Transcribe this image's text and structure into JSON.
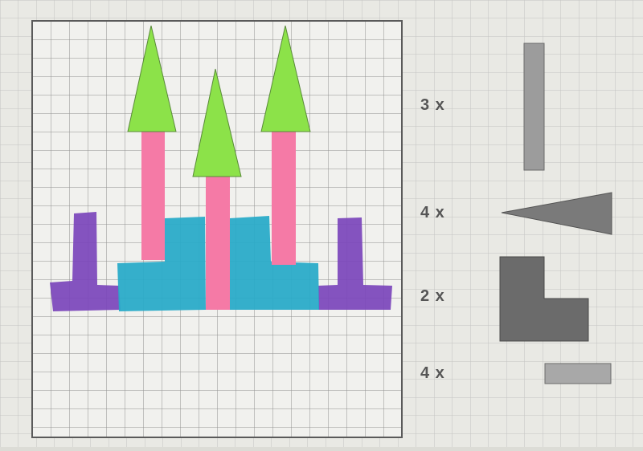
{
  "palette": {
    "paper": "#ecece8",
    "grid_line": "#9d9d9d",
    "frame": "#555555",
    "green": "#8de04a",
    "pink": "#f47aa5",
    "blue": "#2aabc9",
    "purple": "#7b43b8",
    "piece_light": "#9b9b9b",
    "piece_dark": "#6a6a6a"
  },
  "piece_counts": [
    {
      "piece": "long-bar",
      "label": "3 x"
    },
    {
      "piece": "triangle",
      "label": "4 x"
    },
    {
      "piece": "l-shape",
      "label": "2 x"
    },
    {
      "piece": "short-bar",
      "label": "4 x"
    }
  ]
}
